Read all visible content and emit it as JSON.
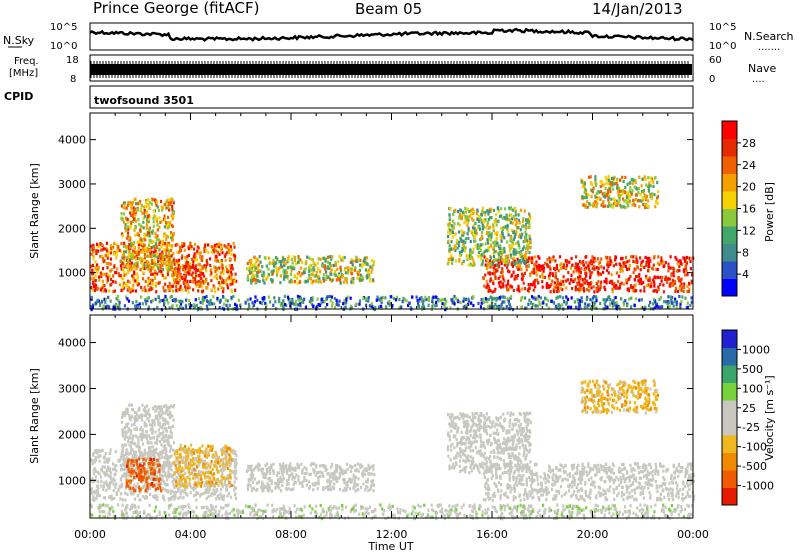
{
  "header": {
    "station": "Prince George (fitACF)",
    "beam": "Beam 05",
    "date": "14/Jan/2013"
  },
  "noise_panel": {
    "left_label": "N.Sky",
    "left_ticks": [
      "10^5",
      "10^0"
    ],
    "right_ticks": [
      "10^5",
      "10^0"
    ],
    "right_label": "N.Search",
    "right_dots": "......."
  },
  "freq_panel": {
    "left_label_1": "Freq.",
    "left_label_2": "[MHz]",
    "left_ticks": [
      "18",
      "8"
    ],
    "right_ticks": [
      "60",
      "0"
    ],
    "right_label": "Nave",
    "right_dots": "...."
  },
  "cpid": {
    "label": "CPID",
    "value": "twofsound 3501"
  },
  "power_colorbar": {
    "title": "Power [dB]",
    "labels": [
      "28",
      "24",
      "20",
      "16",
      "12",
      "8",
      "4"
    ],
    "colors": [
      "#0000ff",
      "#2a52c4",
      "#3f8c8c",
      "#42a56a",
      "#8cc83c",
      "#f5d200",
      "#f5a000",
      "#f06000",
      "#e62a00",
      "#ff0000"
    ]
  },
  "velocity_colorbar": {
    "title": "Velocity [m s⁻¹]",
    "labels": [
      "1000",
      "500",
      "100",
      "25",
      "-25",
      "-100",
      "-500",
      "-1000"
    ],
    "colors": [
      "#2020d0",
      "#2a6aa8",
      "#3aa66a",
      "#78d23c",
      "#c8c8c0",
      "#c8c8c0",
      "#f0b820",
      "#f08a00",
      "#f05a00",
      "#e61a00"
    ]
  },
  "x_ticks": [
    "00:00",
    "04:00",
    "08:00",
    "12:00",
    "16:00",
    "20:00",
    "00:00"
  ],
  "x_label": "Time UT",
  "chart_data": [
    {
      "type": "heatmap",
      "title": "Power",
      "ylabel": "Slant Range [km]",
      "y_ticks": [
        1000,
        2000,
        3000,
        4000
      ],
      "xlim_hours": [
        0,
        24
      ],
      "ylim_km": [
        180,
        4600
      ],
      "colorbar_range_db": [
        0,
        32
      ],
      "scatter_regions": [
        {
          "t0": 0.0,
          "t1": 5.8,
          "r0": 600,
          "r1": 1700,
          "level": 0.75
        },
        {
          "t0": 1.2,
          "t1": 3.3,
          "r0": 1100,
          "r1": 2700,
          "level": 0.6
        },
        {
          "t0": 3.2,
          "t1": 4.6,
          "r0": 800,
          "r1": 1200,
          "level": 0.85
        },
        {
          "t0": 6.2,
          "t1": 11.3,
          "r0": 800,
          "r1": 1400,
          "level": 0.5
        },
        {
          "t0": 15.6,
          "t1": 24.0,
          "r0": 600,
          "r1": 1400,
          "level": 0.9
        },
        {
          "t0": 14.2,
          "t1": 17.5,
          "r0": 1200,
          "r1": 2500,
          "level": 0.45
        },
        {
          "t0": 19.5,
          "t1": 22.6,
          "r0": 2500,
          "r1": 3200,
          "level": 0.55
        },
        {
          "t0": 0.0,
          "t1": 24.0,
          "r0": 200,
          "r1": 500,
          "level": 0.25
        }
      ]
    },
    {
      "type": "heatmap",
      "title": "Velocity",
      "ylabel": "Slant Range [km]",
      "y_ticks": [
        1000,
        2000,
        3000,
        4000
      ],
      "xlim_hours": [
        0,
        24
      ],
      "ylim_km": [
        180,
        4600
      ],
      "colorbar_range_ms": [
        -1000,
        1000
      ],
      "scatter_regions": [
        {
          "t0": 0.0,
          "t1": 5.8,
          "r0": 600,
          "r1": 1700,
          "velocity": 0
        },
        {
          "t0": 1.2,
          "t1": 3.3,
          "r0": 1100,
          "r1": 2700,
          "velocity": 0
        },
        {
          "t0": 1.4,
          "t1": 2.8,
          "r0": 800,
          "r1": 1500,
          "velocity": -700
        },
        {
          "t0": 3.3,
          "t1": 5.6,
          "r0": 900,
          "r1": 1800,
          "velocity": -300
        },
        {
          "t0": 6.2,
          "t1": 11.3,
          "r0": 800,
          "r1": 1400,
          "velocity": 0
        },
        {
          "t0": 15.6,
          "t1": 24.0,
          "r0": 600,
          "r1": 1400,
          "velocity": 0
        },
        {
          "t0": 14.2,
          "t1": 17.5,
          "r0": 1200,
          "r1": 2500,
          "velocity": 0
        },
        {
          "t0": 19.5,
          "t1": 22.6,
          "r0": 2500,
          "r1": 3200,
          "velocity": -300
        },
        {
          "t0": 0.0,
          "t1": 24.0,
          "r0": 200,
          "r1": 500,
          "velocity": 100
        }
      ]
    }
  ]
}
